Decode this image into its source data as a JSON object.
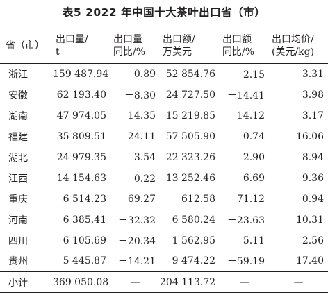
{
  "title": "表5 2022 年中国十大茶叶出口省（市）",
  "headers": [
    "省（市）",
    "出口量/\nt",
    "出口量\n同比/%",
    "出口额/\n万美元",
    "出口额\n同比/%",
    "出口均价/\n(美元/kg)"
  ],
  "rows": [
    [
      "浙江",
      "159 487.94",
      "0.89",
      "52 854.76",
      "－2.15",
      "3.31"
    ],
    [
      "安徽",
      "62 193.40",
      "－8.30",
      "24 727.50",
      "－14.41",
      "3.98"
    ],
    [
      "湖南",
      "47 974.05",
      "14.35",
      "15 219.85",
      "14.12",
      "3.17"
    ],
    [
      "福建",
      "35 809.51",
      "24.11",
      "57 505.90",
      "0.74",
      "16.06"
    ],
    [
      "湖北",
      "24 979.35",
      "3.54",
      "22 323.26",
      "2.90",
      "8.94"
    ],
    [
      "江西",
      "14 154.63",
      "－0.22",
      "13 252.46",
      "6.69",
      "9.36"
    ],
    [
      "重庆",
      "6 514.23",
      "69.27",
      "612.58",
      "71.12",
      "0.94"
    ],
    [
      "河南",
      "6 385.41",
      "－32.32",
      "6 580.24",
      "－23.63",
      "10.31"
    ],
    [
      "四川",
      "6 105.69",
      "－20.34",
      "1 562.95",
      "5.11",
      "2.56"
    ],
    [
      "贵州",
      "5 445.87",
      "－14.21",
      "9 474.22",
      "－59.19",
      "17.40"
    ]
  ],
  "total": [
    "小计",
    "369 050.08",
    "—",
    "204 113.72",
    "—",
    "—"
  ]
}
